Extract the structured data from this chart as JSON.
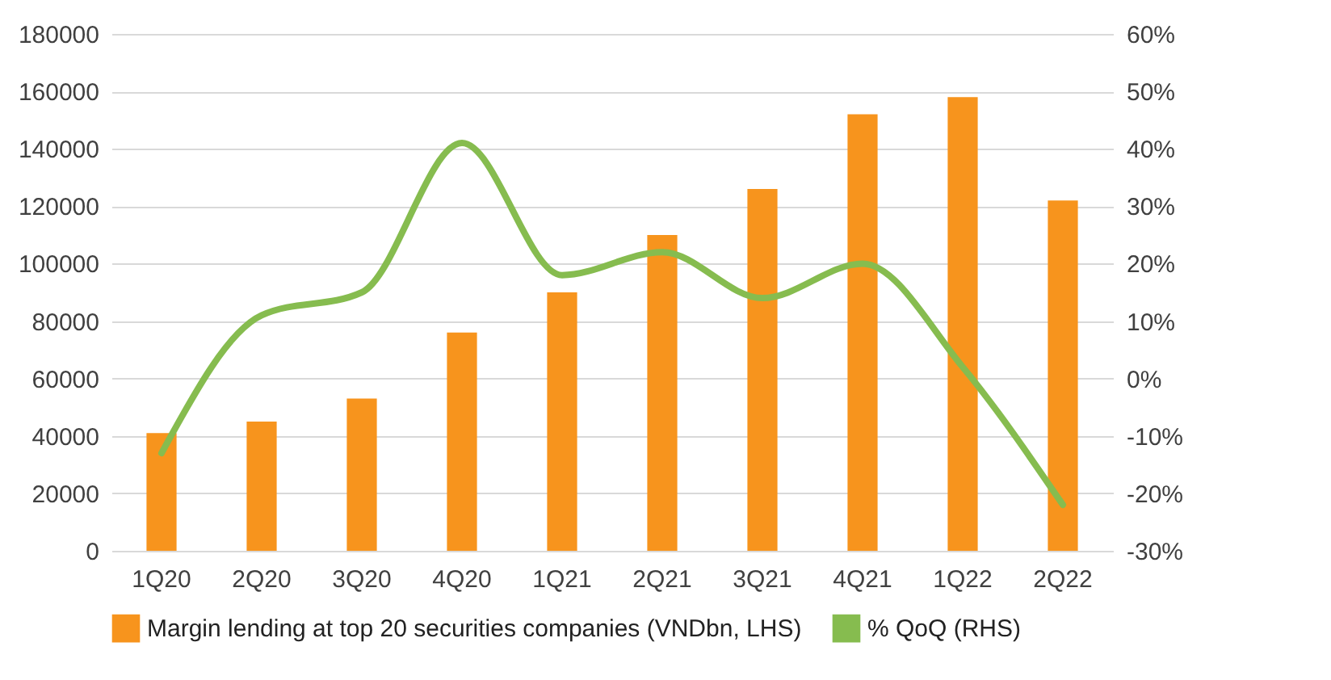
{
  "chart_data": {
    "type": "bar",
    "categories": [
      "1Q20",
      "2Q20",
      "3Q20",
      "4Q20",
      "1Q21",
      "2Q21",
      "3Q21",
      "4Q21",
      "1Q22",
      "2Q22"
    ],
    "series": [
      {
        "name": "Margin lending at top 20 securities companies (VNDbn, LHS)",
        "color": "#f7941d",
        "values": [
          41000,
          45000,
          53000,
          76000,
          90000,
          110000,
          126000,
          152000,
          158000,
          122000
        ]
      },
      {
        "name": "% QoQ (RHS)",
        "type": "line",
        "axis": "y2",
        "color": "#86bc4f",
        "values": [
          -13,
          11,
          15,
          41,
          18,
          22,
          14,
          20,
          2,
          -22
        ]
      }
    ],
    "ylim": [
      0,
      180000
    ],
    "yticks": [
      0,
      20000,
      40000,
      60000,
      80000,
      100000,
      120000,
      140000,
      160000,
      180000
    ],
    "y2lim": [
      -30,
      60
    ],
    "y2ticks": [
      {
        "value": -30,
        "label": "-30%"
      },
      {
        "value": -20,
        "label": "-20%"
      },
      {
        "value": -10,
        "label": "-10%"
      },
      {
        "value": 0,
        "label": "0%"
      },
      {
        "value": 10,
        "label": "10%"
      },
      {
        "value": 20,
        "label": "20%"
      },
      {
        "value": 30,
        "label": "30%"
      },
      {
        "value": 40,
        "label": "40%"
      },
      {
        "value": 50,
        "label": "50%"
      },
      {
        "value": 60,
        "label": "60%"
      }
    ],
    "grid": "y",
    "legend": "bottom",
    "line_style": "solid",
    "marker": "none"
  }
}
